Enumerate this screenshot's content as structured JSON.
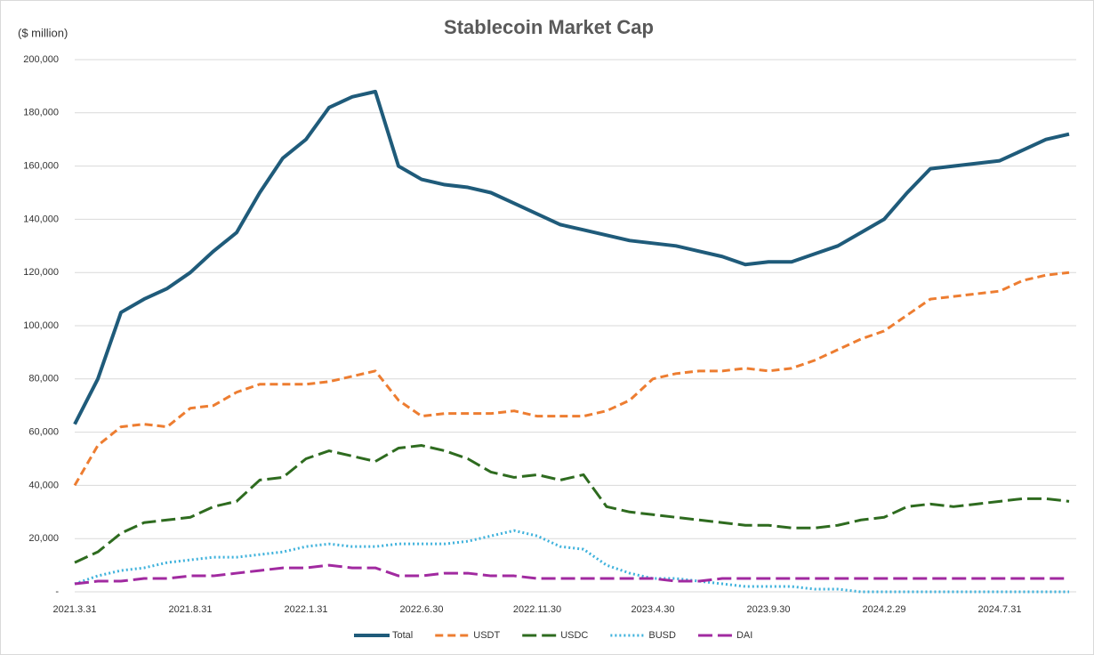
{
  "chart_data": {
    "type": "line",
    "title": "Stablecoin Market Cap",
    "y_label": "($ million)",
    "categories": [
      "2021.3.31",
      null,
      null,
      null,
      null,
      "2021.8.31",
      null,
      null,
      null,
      null,
      "2022.1.31",
      null,
      null,
      null,
      null,
      "2022.6.30",
      null,
      null,
      null,
      null,
      "2022.11.30",
      null,
      null,
      null,
      null,
      "2023.4.30",
      null,
      null,
      null,
      null,
      "2023.9.30",
      null,
      null,
      null,
      null,
      "2024.2.29",
      null,
      null,
      null,
      null,
      "2024.7.31",
      null,
      null,
      null
    ],
    "ylim": [
      0,
      200000
    ],
    "yticks": [
      {
        "value": 0,
        "label": "-"
      },
      {
        "value": 20000,
        "label": "20,000"
      },
      {
        "value": 40000,
        "label": "40,000"
      },
      {
        "value": 60000,
        "label": "60,000"
      },
      {
        "value": 80000,
        "label": "80,000"
      },
      {
        "value": 100000,
        "label": "100,000"
      },
      {
        "value": 120000,
        "label": "120,000"
      },
      {
        "value": 140000,
        "label": "140,000"
      },
      {
        "value": 160000,
        "label": "160,000"
      },
      {
        "value": 180000,
        "label": "180,000"
      },
      {
        "value": 200000,
        "label": "200,000"
      }
    ],
    "grid": true,
    "legend": "bottom",
    "series": [
      {
        "name": "Total",
        "color": "#1f5b7a",
        "dash": "solid",
        "values": [
          63000,
          80000,
          105000,
          110000,
          114000,
          120000,
          128000,
          135000,
          150000,
          163000,
          170000,
          182000,
          186000,
          188000,
          160000,
          155000,
          153000,
          152000,
          150000,
          146000,
          142000,
          138000,
          136000,
          134000,
          132000,
          131000,
          130000,
          128000,
          126000,
          123000,
          124000,
          124000,
          127000,
          130000,
          135000,
          140000,
          150000,
          159000,
          160000,
          161000,
          162000,
          166000,
          170000,
          172000
        ]
      },
      {
        "name": "USDT",
        "color": "#ed7d31",
        "dash": "dashed",
        "values": [
          40000,
          55000,
          62000,
          63000,
          62000,
          69000,
          70000,
          75000,
          78000,
          78000,
          78000,
          79000,
          81000,
          83000,
          72000,
          66000,
          67000,
          67000,
          67000,
          68000,
          66000,
          66000,
          66000,
          68000,
          72000,
          80000,
          82000,
          83000,
          83000,
          84000,
          83000,
          84000,
          87000,
          91000,
          95000,
          98000,
          104000,
          110000,
          111000,
          112000,
          113000,
          117000,
          119000,
          120000
        ]
      },
      {
        "name": "USDC",
        "color": "#2e6b1f",
        "dash": "longdash",
        "values": [
          11000,
          15000,
          22000,
          26000,
          27000,
          28000,
          32000,
          34000,
          42000,
          43000,
          50000,
          53000,
          51000,
          49000,
          54000,
          55000,
          53000,
          50000,
          45000,
          43000,
          44000,
          42000,
          44000,
          32000,
          30000,
          29000,
          28000,
          27000,
          26000,
          25000,
          25000,
          24000,
          24000,
          25000,
          27000,
          28000,
          32000,
          33000,
          32000,
          33000,
          34000,
          35000,
          35000,
          34000
        ]
      },
      {
        "name": "BUSD",
        "color": "#3fb2dc",
        "dash": "dotted",
        "values": [
          3000,
          6000,
          8000,
          9000,
          11000,
          12000,
          13000,
          13000,
          14000,
          15000,
          17000,
          18000,
          17000,
          17000,
          18000,
          18000,
          18000,
          19000,
          21000,
          23000,
          21000,
          17000,
          16000,
          10000,
          7000,
          5000,
          5000,
          4000,
          3000,
          2000,
          2000,
          2000,
          1000,
          1000,
          0,
          0,
          0,
          0,
          0,
          0,
          0,
          0,
          0,
          0
        ]
      },
      {
        "name": "DAI",
        "color": "#a12aa0",
        "dash": "longdash",
        "values": [
          3000,
          4000,
          4000,
          5000,
          5000,
          6000,
          6000,
          7000,
          8000,
          9000,
          9000,
          10000,
          9000,
          9000,
          6000,
          6000,
          7000,
          7000,
          6000,
          6000,
          5000,
          5000,
          5000,
          5000,
          5000,
          5000,
          4000,
          4000,
          5000,
          5000,
          5000,
          5000,
          5000,
          5000,
          5000,
          5000,
          5000,
          5000,
          5000,
          5000,
          5000,
          5000,
          5000,
          5000
        ]
      }
    ]
  }
}
